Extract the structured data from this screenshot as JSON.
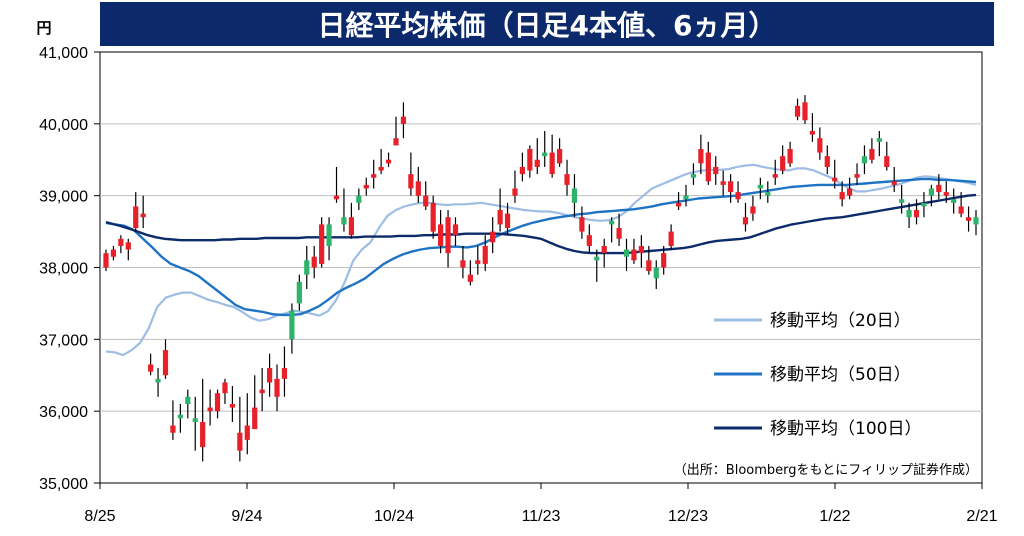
{
  "chart_data": {
    "type": "candlestick",
    "title": "日経平均株価（日足4本値、6ヵ月）",
    "unit": "円",
    "ylim": [
      35000,
      41000
    ],
    "yticks": [
      35000,
      36000,
      37000,
      38000,
      39000,
      40000,
      41000
    ],
    "ytick_labels": [
      "35,000",
      "36,000",
      "37,000",
      "38,000",
      "39,000",
      "40,000",
      "41,000"
    ],
    "xtick_labels": [
      "8/25",
      "9/24",
      "10/24",
      "11/23",
      "12/23",
      "1/22",
      "2/21"
    ],
    "source": "（出所：Bloombergをもとにフィリップ証券作成）",
    "up_color": "#2db36a",
    "down_color": "#e8202a",
    "legend": [
      {
        "label": "移動平均（20日）",
        "color": "#9dbde4"
      },
      {
        "label": "移動平均（50日）",
        "color": "#1f73c4"
      },
      {
        "label": "移動平均（100日）",
        "color": "#0d2a6b"
      }
    ],
    "candles": [
      [
        38200,
        38250,
        37950,
        38000
      ],
      [
        38250,
        38300,
        38100,
        38150
      ],
      [
        38400,
        38450,
        38200,
        38300
      ],
      [
        38350,
        38400,
        38100,
        38250
      ],
      [
        38850,
        39050,
        38500,
        38550
      ],
      [
        38750,
        39000,
        38550,
        38700
      ],
      [
        36650,
        36800,
        36500,
        36550
      ],
      [
        36400,
        36600,
        36200,
        36450
      ],
      [
        36850,
        37000,
        36450,
        36500
      ],
      [
        35800,
        36150,
        35600,
        35700
      ],
      [
        35900,
        36100,
        35700,
        35950
      ],
      [
        36100,
        36300,
        35900,
        36200
      ],
      [
        35850,
        36200,
        35450,
        35900
      ],
      [
        35850,
        36450,
        35300,
        35500
      ],
      [
        36050,
        36300,
        35800,
        36000
      ],
      [
        36250,
        36300,
        35900,
        36000
      ],
      [
        36400,
        36450,
        36100,
        36250
      ],
      [
        36100,
        36350,
        35850,
        36050
      ],
      [
        35700,
        36200,
        35300,
        35450
      ],
      [
        35800,
        36250,
        35400,
        35600
      ],
      [
        36050,
        36500,
        35800,
        35750
      ],
      [
        36300,
        36600,
        36000,
        36250
      ],
      [
        36600,
        36800,
        36200,
        36400
      ],
      [
        36450,
        36650,
        36000,
        36200
      ],
      [
        36600,
        36900,
        36200,
        36450
      ],
      [
        37000,
        37500,
        36800,
        37400
      ],
      [
        37500,
        37900,
        37400,
        37800
      ],
      [
        37900,
        38300,
        37700,
        38100
      ],
      [
        38150,
        38300,
        37850,
        38000
      ],
      [
        38600,
        38700,
        38000,
        38050
      ],
      [
        38300,
        38700,
        38100,
        38600
      ],
      [
        39000,
        39400,
        38900,
        38950
      ],
      [
        38600,
        39100,
        38500,
        38700
      ],
      [
        38700,
        38900,
        38400,
        38450
      ],
      [
        38900,
        39100,
        38800,
        39000
      ],
      [
        39150,
        39250,
        39000,
        39100
      ],
      [
        39300,
        39500,
        39100,
        39250
      ],
      [
        39400,
        39650,
        39300,
        39350
      ],
      [
        39500,
        39600,
        39400,
        39450
      ],
      [
        39800,
        40100,
        39700,
        39700
      ],
      [
        40100,
        40300,
        39800,
        40000
      ],
      [
        39300,
        39600,
        39000,
        39100
      ],
      [
        39200,
        39400,
        38900,
        39000
      ],
      [
        39000,
        39200,
        38800,
        38850
      ],
      [
        38900,
        39000,
        38400,
        38500
      ],
      [
        38600,
        38800,
        38200,
        38300
      ],
      [
        38700,
        38800,
        38000,
        38200
      ],
      [
        38600,
        38700,
        38300,
        38450
      ],
      [
        38100,
        38300,
        37850,
        38000
      ],
      [
        37900,
        38100,
        37750,
        37800
      ],
      [
        38100,
        38300,
        37900,
        38050
      ],
      [
        38300,
        38450,
        37950,
        38050
      ],
      [
        38500,
        38700,
        38200,
        38350
      ],
      [
        38800,
        39100,
        38500,
        38600
      ],
      [
        38750,
        38900,
        38450,
        38550
      ],
      [
        39100,
        39350,
        38900,
        39000
      ],
      [
        39400,
        39600,
        39200,
        39300
      ],
      [
        39650,
        39700,
        39250,
        39350
      ],
      [
        39500,
        39800,
        39300,
        39400
      ],
      [
        39550,
        39900,
        39400,
        39600
      ],
      [
        39600,
        39850,
        39250,
        39300
      ],
      [
        39650,
        39800,
        39400,
        39450
      ],
      [
        39300,
        39500,
        39000,
        39150
      ],
      [
        38900,
        39300,
        38700,
        39100
      ],
      [
        38700,
        38850,
        38400,
        38500
      ],
      [
        38450,
        38600,
        38200,
        38300
      ],
      [
        38100,
        38250,
        37800,
        38150
      ],
      [
        38300,
        38400,
        38000,
        38200
      ],
      [
        38600,
        38700,
        38350,
        38650
      ],
      [
        38550,
        38750,
        38300,
        38400
      ],
      [
        38150,
        38400,
        37950,
        38250
      ],
      [
        38250,
        38400,
        38050,
        38100
      ],
      [
        38300,
        38450,
        38000,
        38200
      ],
      [
        38100,
        38300,
        37900,
        37950
      ],
      [
        37850,
        38100,
        37700,
        38000
      ],
      [
        38200,
        38300,
        37900,
        38000
      ],
      [
        38500,
        38600,
        38250,
        38300
      ],
      [
        38900,
        39050,
        38800,
        38850
      ],
      [
        38950,
        39150,
        38850,
        39000
      ],
      [
        39250,
        39450,
        39150,
        39300
      ],
      [
        39650,
        39850,
        39300,
        39450
      ],
      [
        39600,
        39750,
        39150,
        39200
      ],
      [
        39400,
        39550,
        39150,
        39300
      ],
      [
        39200,
        39350,
        39000,
        39150
      ],
      [
        39200,
        39300,
        38900,
        39050
      ],
      [
        39050,
        39200,
        38900,
        38950
      ],
      [
        38700,
        38900,
        38500,
        38600
      ],
      [
        38850,
        39000,
        38650,
        38750
      ],
      [
        39100,
        39250,
        38950,
        39150
      ],
      [
        39000,
        39200,
        38900,
        39050
      ],
      [
        39300,
        39500,
        39150,
        39250
      ],
      [
        39550,
        39700,
        39300,
        39350
      ],
      [
        39650,
        39750,
        39400,
        39450
      ],
      [
        40250,
        40350,
        40050,
        40100
      ],
      [
        40300,
        40400,
        40000,
        40050
      ],
      [
        39900,
        40150,
        39750,
        39850
      ],
      [
        39800,
        39950,
        39500,
        39600
      ],
      [
        39550,
        39700,
        39300,
        39400
      ],
      [
        39250,
        39500,
        39100,
        39200
      ],
      [
        39050,
        39200,
        38850,
        38950
      ],
      [
        39100,
        39250,
        38950,
        39000
      ],
      [
        39300,
        39450,
        39150,
        39250
      ],
      [
        39450,
        39700,
        39300,
        39550
      ],
      [
        39650,
        39800,
        39450,
        39500
      ],
      [
        39750,
        39900,
        39550,
        39800
      ],
      [
        39550,
        39750,
        39350,
        39400
      ],
      [
        39200,
        39400,
        39050,
        39150
      ],
      [
        38900,
        39150,
        38750,
        38950
      ],
      [
        38700,
        38900,
        38550,
        38800
      ],
      [
        38800,
        38950,
        38600,
        38700
      ],
      [
        38850,
        39050,
        38700,
        38900
      ],
      [
        39000,
        39150,
        38850,
        39100
      ],
      [
        39150,
        39300,
        38950,
        39050
      ],
      [
        39050,
        39200,
        38900,
        39000
      ],
      [
        38900,
        39100,
        38750,
        38950
      ],
      [
        38850,
        39050,
        38700,
        38750
      ],
      [
        38700,
        38850,
        38500,
        38650
      ],
      [
        38600,
        38800,
        38450,
        38700
      ]
    ],
    "series": [
      {
        "name": "移動平均（20日）",
        "color": "#9dbde4",
        "values": [
          36830,
          36820,
          36780,
          36850,
          36950,
          37150,
          37450,
          37580,
          37620,
          37650,
          37650,
          37600,
          37550,
          37520,
          37480,
          37450,
          37380,
          37300,
          37260,
          37280,
          37330,
          37360,
          37400,
          37380,
          37360,
          37330,
          37390,
          37550,
          37800,
          38100,
          38250,
          38350,
          38550,
          38720,
          38800,
          38850,
          38880,
          38900,
          38900,
          38880,
          38870,
          38880,
          38880,
          38890,
          38900,
          38880,
          38860,
          38840,
          38820,
          38800,
          38790,
          38780,
          38780,
          38760,
          38730,
          38700,
          38680,
          38660,
          38650,
          38660,
          38700,
          38780,
          38900,
          39000,
          39100,
          39150,
          39200,
          39250,
          39300,
          39330,
          39350,
          39360,
          39360,
          39370,
          39400,
          39420,
          39430,
          39400,
          39380,
          39360,
          39350,
          39380,
          39380,
          39350,
          39300,
          39250,
          39180,
          39110,
          39060,
          39060,
          39080,
          39100,
          39130,
          39160,
          39200,
          39250,
          39270,
          39260,
          39240,
          39220,
          39200,
          39180,
          39150
        ]
      },
      {
        "name": "移動平均（50日）",
        "color": "#1f73c4",
        "values": [
          38620,
          38600,
          38580,
          38520,
          38400,
          38280,
          38150,
          38050,
          38000,
          37950,
          37880,
          37780,
          37680,
          37580,
          37480,
          37420,
          37400,
          37380,
          37350,
          37340,
          37340,
          37350,
          37400,
          37460,
          37550,
          37650,
          37720,
          37780,
          37850,
          37950,
          38050,
          38120,
          38180,
          38220,
          38250,
          38270,
          38280,
          38290,
          38290,
          38280,
          38300,
          38350,
          38420,
          38480,
          38530,
          38580,
          38620,
          38650,
          38680,
          38700,
          38720,
          38740,
          38750,
          38770,
          38780,
          38790,
          38800,
          38810,
          38830,
          38850,
          38880,
          38900,
          38920,
          38940,
          38960,
          38970,
          38980,
          38990,
          39000,
          39020,
          39040,
          39060,
          39080,
          39100,
          39120,
          39130,
          39140,
          39150,
          39150,
          39150,
          39150,
          39160,
          39170,
          39180,
          39190,
          39200,
          39210,
          39220,
          39230,
          39230,
          39220,
          39220,
          39210,
          39200,
          39190
        ]
      },
      {
        "name": "移動平均（100日）",
        "color": "#0d2a6b",
        "values": [
          38630,
          38600,
          38570,
          38530,
          38490,
          38450,
          38420,
          38400,
          38390,
          38380,
          38380,
          38380,
          38380,
          38380,
          38390,
          38390,
          38400,
          38400,
          38400,
          38410,
          38410,
          38410,
          38410,
          38410,
          38420,
          38420,
          38420,
          38420,
          38420,
          38420,
          38420,
          38430,
          38430,
          38430,
          38430,
          38440,
          38440,
          38440,
          38450,
          38450,
          38460,
          38460,
          38460,
          38470,
          38470,
          38470,
          38470,
          38470,
          38460,
          38450,
          38440,
          38420,
          38400,
          38350,
          38300,
          38260,
          38230,
          38210,
          38200,
          38200,
          38200,
          38200,
          38200,
          38210,
          38220,
          38230,
          38240,
          38250,
          38260,
          38270,
          38290,
          38320,
          38350,
          38370,
          38380,
          38390,
          38400,
          38420,
          38460,
          38500,
          38540,
          38570,
          38600,
          38620,
          38640,
          38660,
          38680,
          38690,
          38700,
          38720,
          38740,
          38760,
          38780,
          38800,
          38820,
          38840,
          38860,
          38880,
          38900,
          38920,
          38940,
          38960,
          38980,
          39000,
          39010
        ]
      }
    ]
  }
}
